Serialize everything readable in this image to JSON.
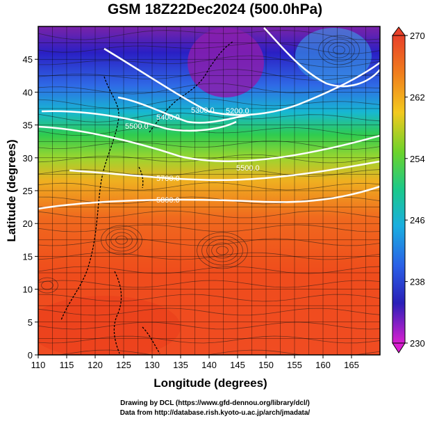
{
  "title": "GSM 18Z22Dec2024 (500.0hPa)",
  "map": {
    "x_axis": {
      "label": "Longitude (degrees)",
      "range": [
        110,
        170
      ],
      "ticks": [
        110,
        115,
        120,
        125,
        130,
        135,
        140,
        145,
        150,
        155,
        160,
        165
      ]
    },
    "y_axis": {
      "label": "Latitude (degrees)",
      "range": [
        0,
        50
      ],
      "ticks": [
        0,
        5,
        10,
        15,
        20,
        25,
        30,
        35,
        40,
        45
      ]
    },
    "grid": true,
    "shaded_field": "temperature (K)",
    "colorbar": {
      "min": 230,
      "max": 270,
      "tick_labels": [
        "270",
        "262",
        "254",
        "246",
        "238",
        "230"
      ]
    },
    "contour_labels": [
      "5200.0",
      "5300.0",
      "5400.0",
      "5500.0",
      "5600.0",
      "5700.0",
      "5800.0"
    ],
    "vectors": "streamlines"
  },
  "credits": {
    "line1": "Drawing by DCL (https://www.gfd-dennou.org/library/dcl/)",
    "line2": "Data from http://database.rish.kyoto-u.ac.jp/arch/jmadata/"
  }
}
